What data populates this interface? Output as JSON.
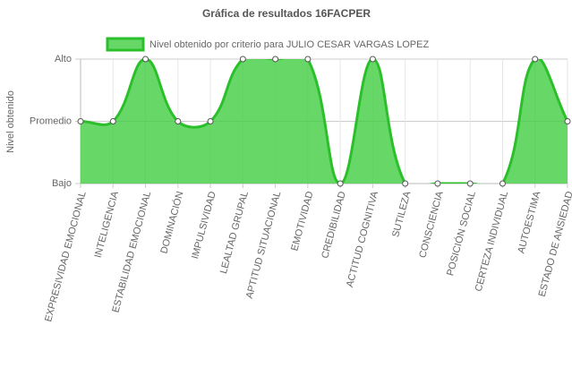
{
  "chart_data": {
    "type": "area",
    "title": "Gráfica de resultados 16FACPER",
    "ylabel": "Nivel obtenido",
    "categories": [
      "EXPRESIVIDAD EMOCIONAL",
      "INTELIGENCIA",
      "ESTABILIDAD EMOCIONAL",
      "DOMINACIÓN",
      "IMPULSIVIDAD",
      "LEALTAD GRUPAL",
      "APTITUD SITUACIONAL",
      "EMOTIVIDAD",
      "CREDIBILIDAD",
      "ACTITUD COGNITIVA",
      "SUTILEZA",
      "CONSCIENCIA",
      "POSICIÓN SOCIAL",
      "CERTEZA INDIVIDUAL",
      "AUTOESTIMA",
      "ESTADO DE ANSIEDAD"
    ],
    "series": [
      {
        "name": "Nivel obtenido por criterio para JULIO CESAR VARGAS LOPEZ",
        "color": "#2bc02b",
        "fill_color": "rgba(60,205,60,0.78)",
        "values": [
          2,
          2,
          3,
          2,
          2,
          3,
          3,
          3,
          1,
          3,
          1,
          1,
          1,
          1,
          3,
          2
        ]
      }
    ],
    "ylim": [
      1,
      3
    ],
    "yticks": [
      {
        "value": 1,
        "label": "Bajo"
      },
      {
        "value": 2,
        "label": "Promedio"
      },
      {
        "value": 3,
        "label": "Alto"
      }
    ],
    "grid": true,
    "legend": "top"
  }
}
